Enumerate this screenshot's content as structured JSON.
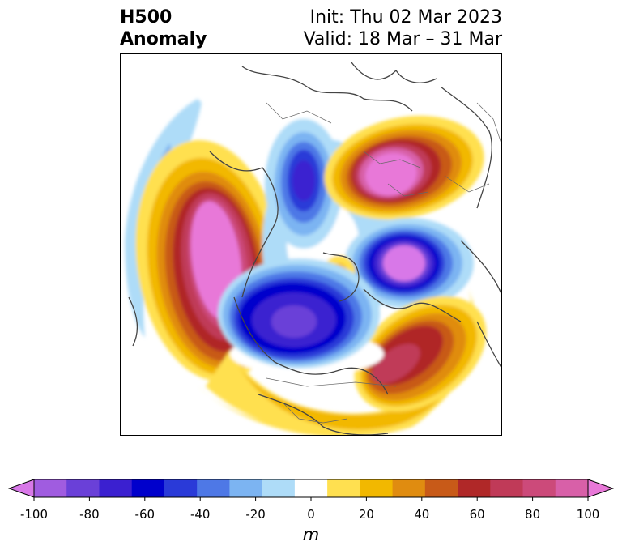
{
  "header": {
    "title_line1": "H500",
    "title_line2": "Anomaly",
    "init_text": "Init: Thu 02 Mar 2023",
    "valid_text": "Valid: 18 Mar – 31 Mar"
  },
  "colorbar": {
    "unit": "m",
    "tick_labels": [
      "-100",
      "-80",
      "-60",
      "-40",
      "-20",
      "0",
      "20",
      "40",
      "60",
      "80",
      "100"
    ],
    "levels": [
      -100,
      -90,
      -80,
      -70,
      -60,
      -50,
      -40,
      -30,
      -20,
      -10,
      10,
      20,
      30,
      40,
      50,
      60,
      70,
      80,
      90,
      100
    ],
    "colors": [
      "#d878e8",
      "#a05ce0",
      "#6a40d8",
      "#3b20d0",
      "#0000cc",
      "#2a3ad8",
      "#4e78e6",
      "#7cb4f2",
      "#aedcf8",
      "#ffffff",
      "#ffe050",
      "#f2b800",
      "#e08c10",
      "#c85a18",
      "#b02828",
      "#c03a58",
      "#cc4a7a",
      "#d860a8",
      "#e878d8"
    ],
    "extend": "both"
  },
  "map": {
    "projection": "north-polar-stereographic",
    "variable": "500 hPa geopotential height anomaly"
  }
}
